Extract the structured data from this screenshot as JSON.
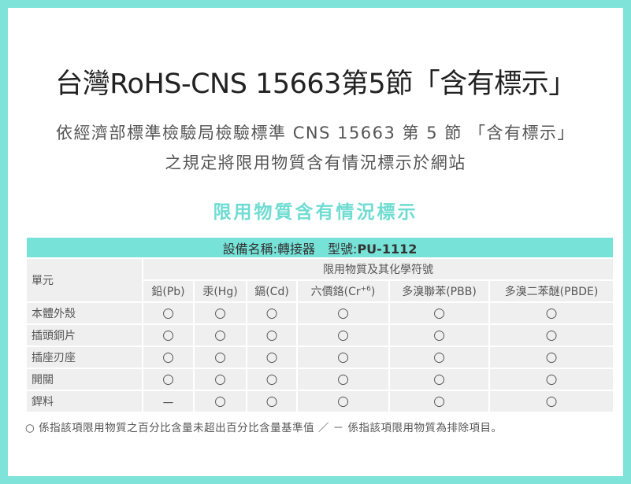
{
  "title": "台灣RoHS-CNS 15663第5節「含有標示」",
  "subtitle": "依經濟部標準檢驗局檢驗標準 CNS 15663 第 5 節 「含有標示」之規定將限用物質含有情況標示於網站",
  "section_title": "限用物質含有情況標示",
  "table": {
    "device_label": "設備名稱:轉接器　型號:",
    "model": "PU-1112",
    "unit_header": "單元",
    "group_header": "限用物質及其化學符號",
    "columns": [
      "鉛(Pb)",
      "汞(Hg)",
      "鎘(Cd)",
      "六價鉻(Cr",
      "多溴聯苯(PBB)",
      "多溴二苯醚(PBDE)"
    ],
    "cr_sup": "+6",
    "cr_close": ")",
    "rows": [
      {
        "unit": "本體外殼",
        "values": [
          "○",
          "○",
          "○",
          "○",
          "○",
          "○"
        ]
      },
      {
        "unit": "插頭銅片",
        "values": [
          "○",
          "○",
          "○",
          "○",
          "○",
          "○"
        ]
      },
      {
        "unit": "插座刃座",
        "values": [
          "○",
          "○",
          "○",
          "○",
          "○",
          "○"
        ]
      },
      {
        "unit": "開關",
        "values": [
          "○",
          "○",
          "○",
          "○",
          "○",
          "○"
        ]
      },
      {
        "unit": "銲料",
        "values": [
          "－",
          "○",
          "○",
          "○",
          "○",
          "○"
        ]
      }
    ]
  },
  "note": "○ 係指該項限用物質之百分比含量未超出百分比含量基準值 ／ － 係指該項限用物質為排除項目。",
  "colors": {
    "accent": "#76e2d8",
    "cell_bg": "#efefef"
  }
}
